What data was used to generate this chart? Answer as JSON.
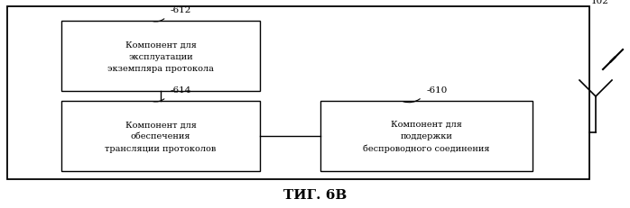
{
  "title": "ΤИГ. 6В",
  "outer_box_label": "102",
  "box612_label": "-612",
  "box614_label": "-614",
  "box610_label": "-610",
  "box612_text": "Компонент для\nэксплуатации\nэкземпляра протокола",
  "box614_text": "Компонент для\nобеспечения\nтрансляции протоколов",
  "box610_text": "Компонент для\nподдержки\nбеспроводного соединения",
  "bg_color": "#ffffff",
  "box_edge_color": "#000000",
  "text_color": "#000000",
  "font_size": 7.0,
  "label_font_size": 7.5,
  "title_font_size": 11
}
